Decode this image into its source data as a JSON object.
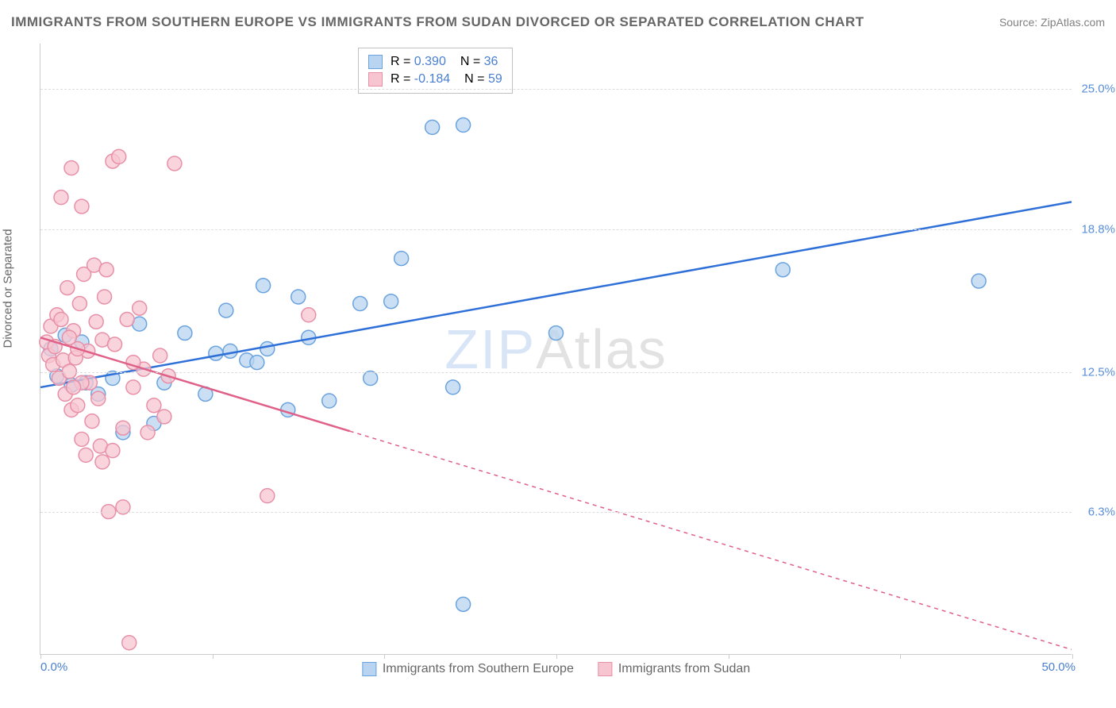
{
  "title": "IMMIGRANTS FROM SOUTHERN EUROPE VS IMMIGRANTS FROM SUDAN DIVORCED OR SEPARATED CORRELATION CHART",
  "source": "Source: ZipAtlas.com",
  "ylabel": "Divorced or Separated",
  "watermark_zip": "ZIP",
  "watermark_atlas": "Atlas",
  "chart": {
    "type": "scatter",
    "xlim": [
      0,
      50
    ],
    "ylim": [
      0,
      27
    ],
    "xticks": [
      0,
      8.33,
      16.67,
      25,
      33.33,
      41.67,
      50
    ],
    "xtick_labels": {
      "min": "0.0%",
      "max": "50.0%"
    },
    "yticks": [
      6.3,
      12.5,
      18.8,
      25.0
    ],
    "ytick_labels": [
      "6.3%",
      "12.5%",
      "18.8%",
      "25.0%"
    ],
    "grid_color": "#dddddd",
    "background_color": "#ffffff",
    "marker_radius": 9,
    "marker_stroke_width": 1.5,
    "series": [
      {
        "name": "Immigrants from Southern Europe",
        "color_fill": "#b8d4f0",
        "color_stroke": "#6ba3de",
        "line_color": "#2e6fd8",
        "line_width": 2.5,
        "R": "0.390",
        "N": "36",
        "trend": {
          "x1": 0,
          "y1": 11.8,
          "x2": 50,
          "y2": 20.0,
          "solid_until_x": 50
        },
        "points": [
          [
            0.5,
            13.5
          ],
          [
            0.8,
            12.3
          ],
          [
            1.2,
            14.1
          ],
          [
            1.5,
            11.9
          ],
          [
            2.0,
            13.8
          ],
          [
            2.2,
            12.0
          ],
          [
            2.8,
            11.5
          ],
          [
            3.5,
            12.2
          ],
          [
            4.0,
            9.8
          ],
          [
            4.8,
            14.6
          ],
          [
            5.5,
            10.2
          ],
          [
            6.0,
            12.0
          ],
          [
            7.0,
            14.2
          ],
          [
            8.0,
            11.5
          ],
          [
            8.5,
            13.3
          ],
          [
            9.0,
            15.2
          ],
          [
            9.2,
            13.4
          ],
          [
            10.0,
            13.0
          ],
          [
            10.5,
            12.9
          ],
          [
            10.8,
            16.3
          ],
          [
            11.0,
            13.5
          ],
          [
            12.0,
            10.8
          ],
          [
            12.5,
            15.8
          ],
          [
            13.0,
            14.0
          ],
          [
            14.0,
            11.2
          ],
          [
            15.5,
            15.5
          ],
          [
            16.0,
            12.2
          ],
          [
            17.0,
            15.6
          ],
          [
            17.5,
            17.5
          ],
          [
            19.0,
            23.3
          ],
          [
            20.5,
            23.4
          ],
          [
            20.0,
            11.8
          ],
          [
            20.5,
            2.2
          ],
          [
            25.0,
            14.2
          ],
          [
            36.0,
            17.0
          ],
          [
            45.5,
            16.5
          ]
        ]
      },
      {
        "name": "Immigrants from Sudan",
        "color_fill": "#f7c5d0",
        "color_stroke": "#e890a8",
        "line_color": "#e06088",
        "line_width": 2.5,
        "R": "-0.184",
        "N": "59",
        "trend": {
          "x1": 0,
          "y1": 14.0,
          "x2": 50,
          "y2": 0.2,
          "solid_until_x": 15
        },
        "points": [
          [
            0.3,
            13.8
          ],
          [
            0.4,
            13.2
          ],
          [
            0.5,
            14.5
          ],
          [
            0.6,
            12.8
          ],
          [
            0.7,
            13.6
          ],
          [
            0.8,
            15.0
          ],
          [
            0.9,
            12.2
          ],
          [
            1.0,
            14.8
          ],
          [
            1.1,
            13.0
          ],
          [
            1.2,
            11.5
          ],
          [
            1.3,
            16.2
          ],
          [
            1.4,
            12.5
          ],
          [
            1.5,
            10.8
          ],
          [
            1.6,
            14.3
          ],
          [
            1.7,
            13.1
          ],
          [
            1.8,
            11.0
          ],
          [
            1.9,
            15.5
          ],
          [
            2.0,
            9.5
          ],
          [
            2.1,
            16.8
          ],
          [
            2.2,
            8.8
          ],
          [
            2.3,
            13.4
          ],
          [
            2.4,
            12.0
          ],
          [
            2.5,
            10.3
          ],
          [
            2.6,
            17.2
          ],
          [
            2.7,
            14.7
          ],
          [
            2.8,
            11.3
          ],
          [
            2.9,
            9.2
          ],
          [
            3.0,
            13.9
          ],
          [
            3.1,
            15.8
          ],
          [
            3.2,
            17.0
          ],
          [
            1.0,
            20.2
          ],
          [
            2.0,
            19.8
          ],
          [
            1.5,
            21.5
          ],
          [
            3.5,
            21.8
          ],
          [
            3.8,
            22.0
          ],
          [
            6.5,
            21.7
          ],
          [
            3.0,
            8.5
          ],
          [
            3.5,
            9.0
          ],
          [
            4.0,
            10.0
          ],
          [
            4.2,
            14.8
          ],
          [
            4.5,
            11.8
          ],
          [
            4.8,
            15.3
          ],
          [
            5.0,
            12.6
          ],
          [
            5.2,
            9.8
          ],
          [
            5.5,
            11.0
          ],
          [
            5.8,
            13.2
          ],
          [
            6.0,
            10.5
          ],
          [
            4.0,
            6.5
          ],
          [
            3.3,
            6.3
          ],
          [
            4.3,
            0.5
          ],
          [
            4.5,
            12.9
          ],
          [
            2.0,
            12.0
          ],
          [
            1.8,
            13.5
          ],
          [
            1.6,
            11.8
          ],
          [
            1.4,
            14.0
          ],
          [
            11.0,
            7.0
          ],
          [
            13.0,
            15.0
          ],
          [
            6.2,
            12.3
          ],
          [
            3.6,
            13.7
          ]
        ]
      }
    ]
  },
  "legend_labels": {
    "r_prefix": "R = ",
    "n_prefix": "N = "
  },
  "text_colors": {
    "title": "#666666",
    "axis": "#666666",
    "blue_value": "#4a7fd0",
    "pink_value": "#4a7fd0",
    "xlabel": "#4a7fd0",
    "ytick": "#5a8fd8"
  }
}
